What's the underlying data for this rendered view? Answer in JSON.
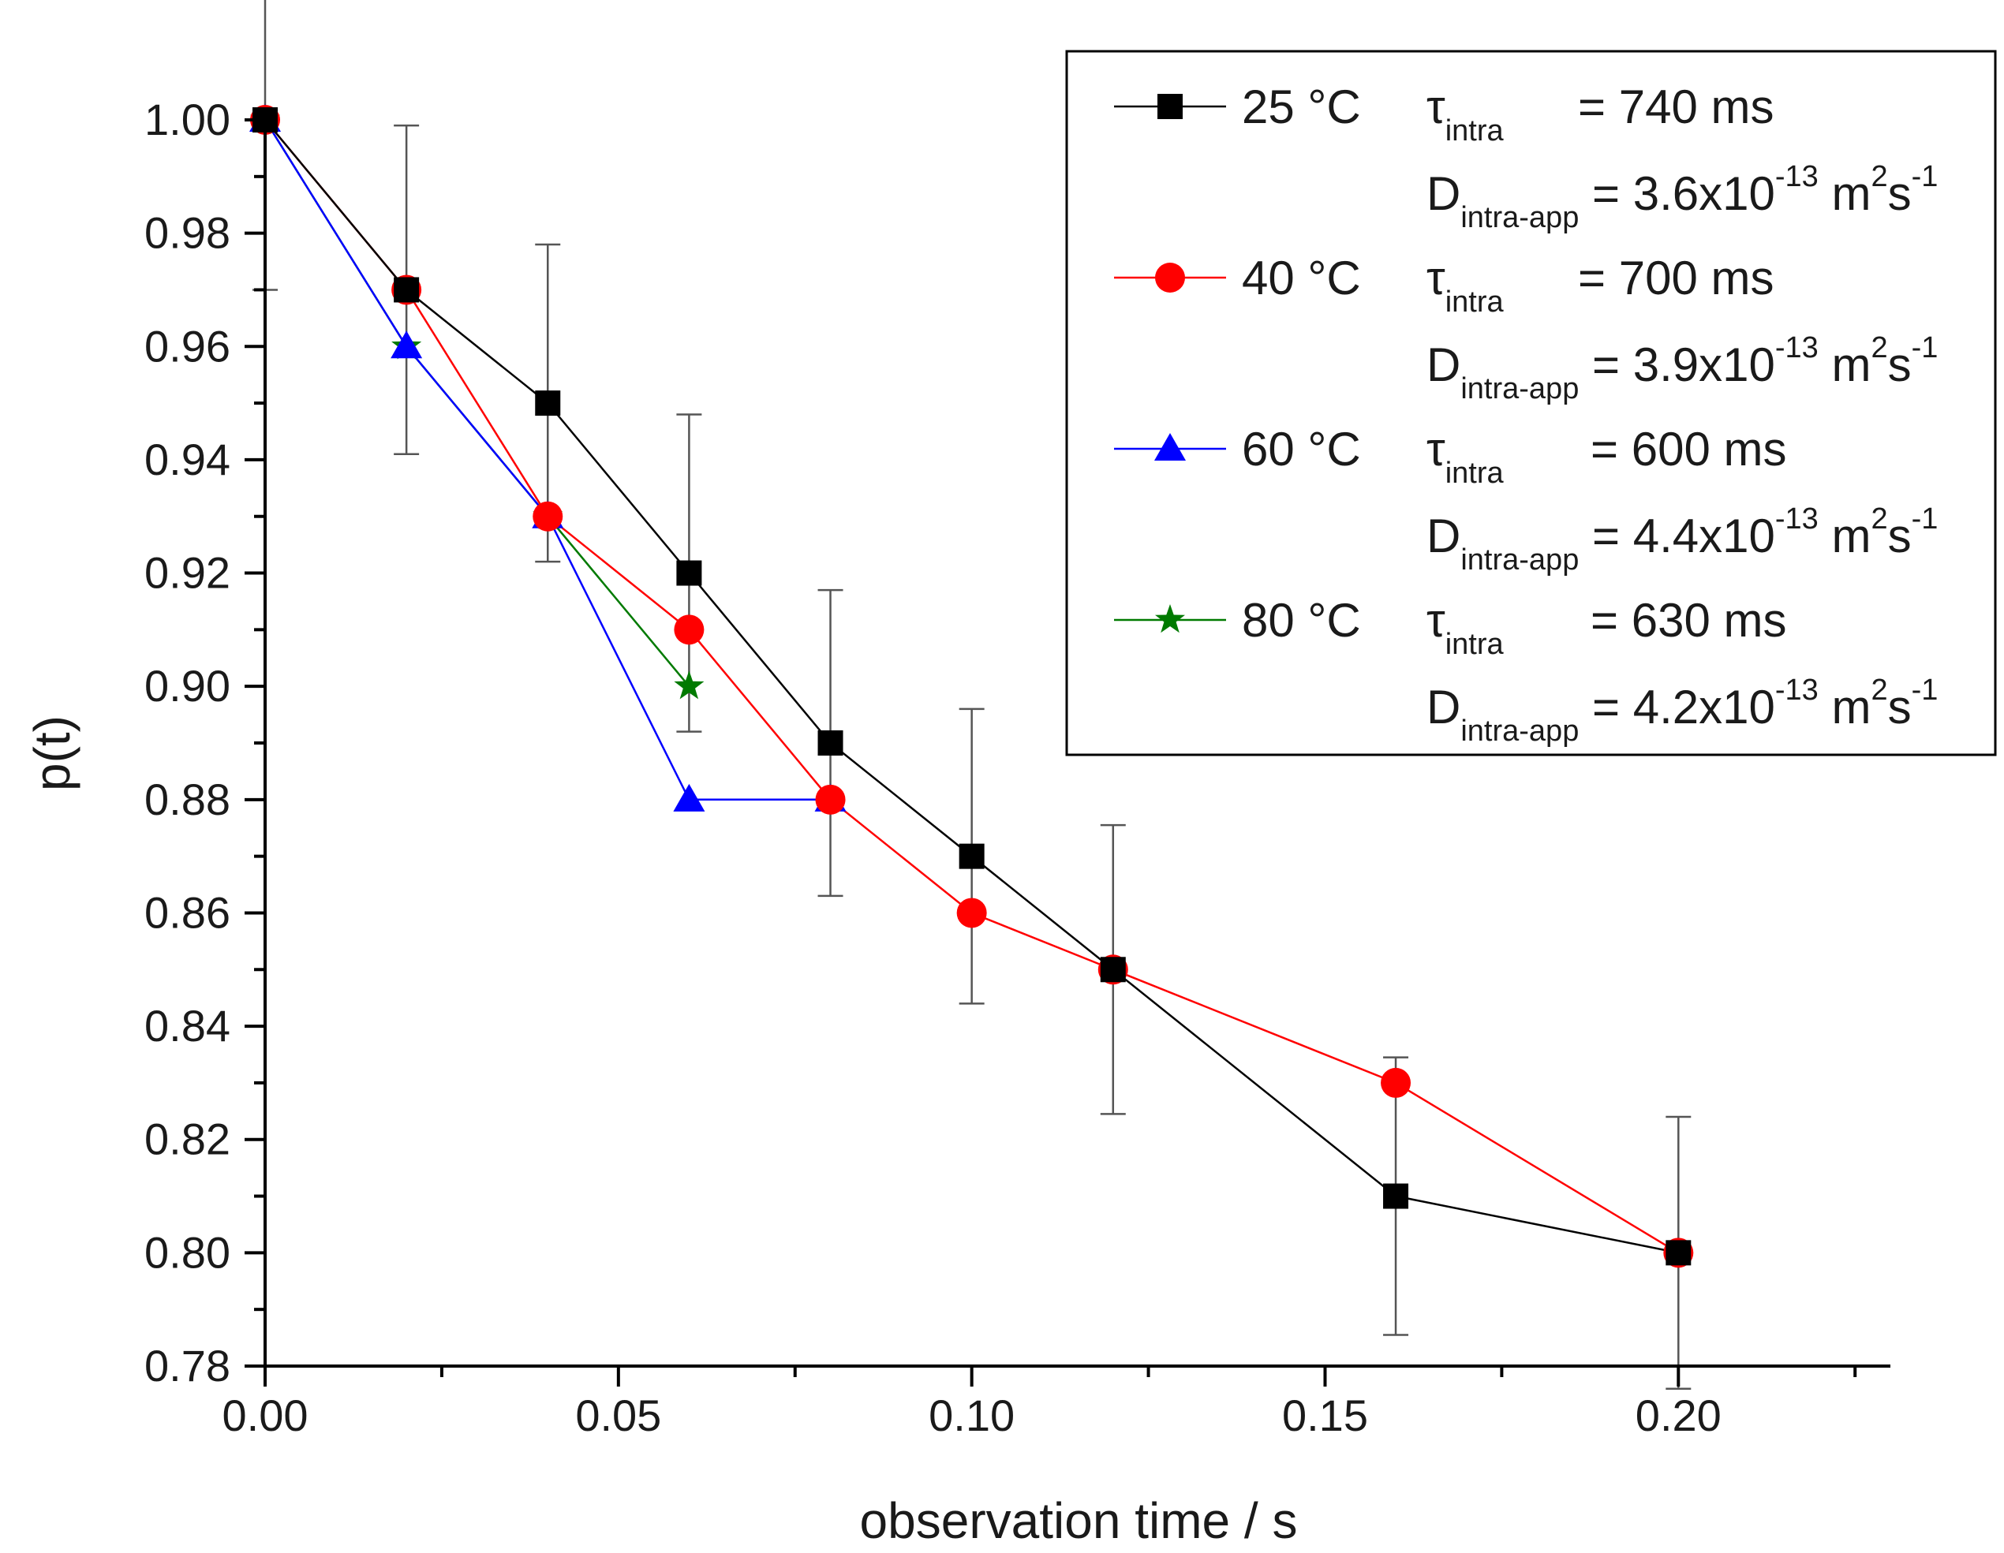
{
  "chart_data": {
    "type": "line",
    "title": "",
    "xlabel": "observation time / s",
    "ylabel": "p(t)",
    "xlim": [
      0.0,
      0.23
    ],
    "ylim": [
      0.78,
      1.0
    ],
    "x_ticks": [
      0.0,
      0.05,
      0.1,
      0.15,
      0.2
    ],
    "x_tick_labels": [
      "0.00",
      "0.05",
      "0.10",
      "0.15",
      "0.20"
    ],
    "x_minor_step": 0.025,
    "y_ticks": [
      0.78,
      0.8,
      0.82,
      0.84,
      0.86,
      0.88,
      0.9,
      0.92,
      0.94,
      0.96,
      0.98,
      1.0
    ],
    "y_tick_labels": [
      "0.78",
      "0.80",
      "0.82",
      "0.84",
      "0.86",
      "0.88",
      "0.90",
      "0.92",
      "0.94",
      "0.96",
      "0.98",
      "1.00"
    ],
    "y_minor_step": 0.01,
    "grid": false,
    "legend_position": "top-right",
    "series": [
      {
        "name": "25 °C",
        "color": "#000000",
        "marker": "square",
        "tau": {
          "symbol": "τ",
          "sub": "intra",
          "value": "= 740 ms"
        },
        "diff": {
          "symbol": "D",
          "sub": "intra-app",
          "value": "= 3.6x10",
          "exp": "-13",
          "unit_a": " m",
          "unit_a_exp": "2",
          "unit_b": "s",
          "unit_b_exp": "-1"
        },
        "x": [
          0.0,
          0.02,
          0.04,
          0.06,
          0.08,
          0.1,
          0.12,
          0.16,
          0.2
        ],
        "y": [
          1.0,
          0.97,
          0.95,
          0.92,
          0.89,
          0.87,
          0.85,
          0.81,
          0.8
        ],
        "err": [
          0.03,
          0.029,
          0.028,
          0.028,
          0.027,
          0.026,
          0.0255,
          0.0245,
          0.024
        ]
      },
      {
        "name": "40 °C",
        "color": "#ff0000",
        "marker": "circle",
        "tau": {
          "symbol": "τ",
          "sub": "intra",
          "value": "= 700 ms"
        },
        "diff": {
          "symbol": "D",
          "sub": "intra-app",
          "value": "= 3.9x10",
          "exp": "-13",
          "unit_a": " m",
          "unit_a_exp": "2",
          "unit_b": "s",
          "unit_b_exp": "-1"
        },
        "x": [
          0.0,
          0.02,
          0.04,
          0.06,
          0.08,
          0.1,
          0.12,
          0.16,
          0.2
        ],
        "y": [
          1.0,
          0.97,
          0.93,
          0.91,
          0.88,
          0.86,
          0.85,
          0.83,
          0.8
        ]
      },
      {
        "name": "60 °C",
        "color": "#0000ff",
        "marker": "triangle",
        "tau": {
          "symbol": "τ",
          "sub": "intra",
          "value": "= 600 ms"
        },
        "diff": {
          "symbol": "D",
          "sub": "intra-app",
          "value": "= 4.4x10",
          "exp": "-13",
          "unit_a": " m",
          "unit_a_exp": "2",
          "unit_b": "s",
          "unit_b_exp": "-1"
        },
        "x": [
          0.0,
          0.02,
          0.04,
          0.06,
          0.08
        ],
        "y": [
          1.0,
          0.96,
          0.93,
          0.88,
          0.88
        ]
      },
      {
        "name": "80 °C",
        "color": "#007a00",
        "marker": "star",
        "tau": {
          "symbol": "τ",
          "sub": "intra",
          "value": "= 630 ms"
        },
        "diff": {
          "symbol": "D",
          "sub": "intra-app",
          "value": "= 4.2x10",
          "exp": "-13",
          "unit_a": " m",
          "unit_a_exp": "2",
          "unit_b": "s",
          "unit_b_exp": "-1"
        },
        "x": [
          0.0,
          0.02,
          0.04,
          0.06
        ],
        "y": [
          1.0,
          0.96,
          0.93,
          0.9
        ]
      }
    ]
  }
}
